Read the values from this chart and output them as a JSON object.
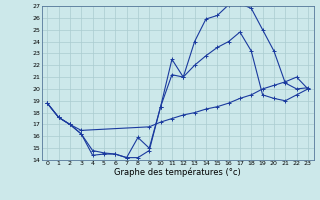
{
  "xlabel": "Graphe des températures (°c)",
  "ylim": [
    14,
    27
  ],
  "xlim": [
    -0.5,
    23.5
  ],
  "yticks": [
    14,
    15,
    16,
    17,
    18,
    19,
    20,
    21,
    22,
    23,
    24,
    25,
    26,
    27
  ],
  "xticks": [
    0,
    1,
    2,
    3,
    4,
    5,
    6,
    7,
    8,
    9,
    10,
    11,
    12,
    13,
    14,
    15,
    16,
    17,
    18,
    19,
    20,
    21,
    22,
    23
  ],
  "bg_color": "#cce8ea",
  "line_color": "#1a3a9e",
  "grid_color": "#aaccd0",
  "line1_x": [
    0,
    1,
    2,
    3,
    4,
    5,
    6,
    7,
    8,
    9,
    10,
    11,
    12,
    13,
    14,
    15,
    16,
    17,
    18,
    19,
    20,
    21,
    22,
    23
  ],
  "line1_y": [
    18.8,
    17.6,
    17.0,
    16.2,
    14.4,
    14.5,
    14.5,
    14.2,
    15.9,
    15.0,
    18.5,
    22.5,
    21.0,
    24.0,
    25.9,
    26.2,
    27.1,
    27.2,
    26.8,
    25.0,
    23.2,
    20.5,
    20.0,
    20.1
  ],
  "line2_x": [
    0,
    1,
    2,
    3,
    4,
    5,
    6,
    7,
    8,
    9,
    10,
    11,
    12,
    13,
    14,
    15,
    16,
    17,
    18,
    19,
    20,
    21,
    22,
    23
  ],
  "line2_y": [
    18.8,
    17.6,
    17.0,
    16.2,
    14.8,
    14.6,
    14.5,
    14.2,
    14.2,
    14.8,
    18.5,
    21.2,
    21.0,
    22.0,
    22.8,
    23.5,
    24.0,
    24.8,
    23.2,
    19.5,
    19.2,
    19.0,
    19.5,
    20.0
  ],
  "line3_x": [
    0,
    1,
    2,
    3,
    9,
    10,
    11,
    12,
    13,
    14,
    15,
    16,
    17,
    18,
    19,
    20,
    21,
    22,
    23
  ],
  "line3_y": [
    18.8,
    17.6,
    17.0,
    16.5,
    16.8,
    17.2,
    17.5,
    17.8,
    18.0,
    18.3,
    18.5,
    18.8,
    19.2,
    19.5,
    20.0,
    20.3,
    20.6,
    21.0,
    20.0
  ]
}
